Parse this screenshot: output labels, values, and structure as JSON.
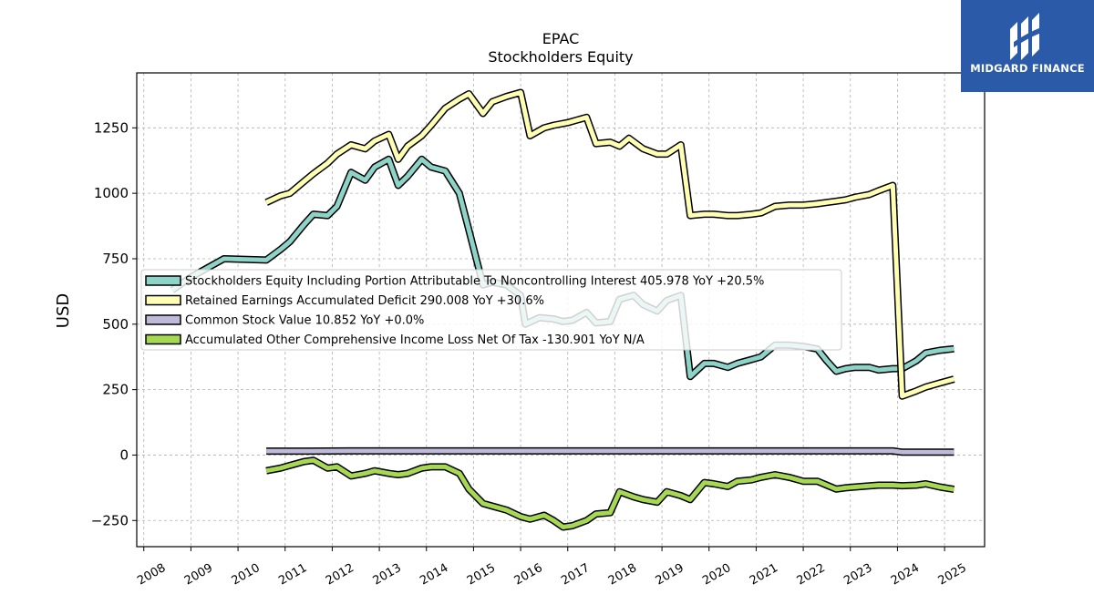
{
  "brand": {
    "name": "MIDGARD FINANCE",
    "logo_icon": "midgard-m-logo",
    "background": "#2b5aa8"
  },
  "chart_data": {
    "type": "line",
    "title": "EPAC",
    "subtitle": "Stockholders  Equity",
    "ylabel": "USD",
    "xlabel": "",
    "ylim": [
      -350,
      1460
    ],
    "xlim": [
      2007.85,
      2025.85
    ],
    "yticks": [
      -250,
      0,
      250,
      500,
      750,
      1000,
      1250
    ],
    "xticks": [
      2008,
      2009,
      2010,
      2011,
      2012,
      2013,
      2014,
      2015,
      2016,
      2017,
      2018,
      2019,
      2020,
      2021,
      2022,
      2023,
      2024,
      2025
    ],
    "grid": true,
    "legend_position": "center-left",
    "series": [
      {
        "name": "Stockholders Equity Including Portion Attributable To Noncontrolling Interest  405.978 YoY +20.5%",
        "color": "#8dd3c7",
        "points": [
          [
            2008.6,
            630
          ],
          [
            2009.0,
            680
          ],
          [
            2009.3,
            710
          ],
          [
            2009.7,
            750
          ],
          [
            2010.6,
            745
          ],
          [
            2010.9,
            785
          ],
          [
            2011.1,
            815
          ],
          [
            2011.4,
            880
          ],
          [
            2011.6,
            920
          ],
          [
            2011.9,
            915
          ],
          [
            2012.1,
            950
          ],
          [
            2012.4,
            1080
          ],
          [
            2012.7,
            1050
          ],
          [
            2012.9,
            1100
          ],
          [
            2013.2,
            1130
          ],
          [
            2013.4,
            1030
          ],
          [
            2013.6,
            1065
          ],
          [
            2013.9,
            1130
          ],
          [
            2014.1,
            1100
          ],
          [
            2014.4,
            1085
          ],
          [
            2014.7,
            1000
          ],
          [
            2014.9,
            860
          ],
          [
            2015.2,
            650
          ],
          [
            2015.4,
            660
          ],
          [
            2015.7,
            650
          ],
          [
            2016.0,
            610
          ],
          [
            2016.1,
            500
          ],
          [
            2016.4,
            525
          ],
          [
            2016.7,
            520
          ],
          [
            2016.9,
            510
          ],
          [
            2017.1,
            515
          ],
          [
            2017.4,
            545
          ],
          [
            2017.6,
            505
          ],
          [
            2017.9,
            510
          ],
          [
            2018.1,
            595
          ],
          [
            2018.4,
            610
          ],
          [
            2018.6,
            575
          ],
          [
            2018.9,
            550
          ],
          [
            2019.1,
            590
          ],
          [
            2019.4,
            610
          ],
          [
            2019.6,
            300
          ],
          [
            2019.9,
            350
          ],
          [
            2020.1,
            350
          ],
          [
            2020.4,
            335
          ],
          [
            2020.6,
            350
          ],
          [
            2020.9,
            365
          ],
          [
            2021.1,
            375
          ],
          [
            2021.4,
            420
          ],
          [
            2021.7,
            420
          ],
          [
            2022.0,
            415
          ],
          [
            2022.3,
            405
          ],
          [
            2022.5,
            360
          ],
          [
            2022.7,
            320
          ],
          [
            2022.9,
            330
          ],
          [
            2023.1,
            335
          ],
          [
            2023.4,
            335
          ],
          [
            2023.6,
            325
          ],
          [
            2023.9,
            330
          ],
          [
            2024.1,
            330
          ],
          [
            2024.4,
            360
          ],
          [
            2024.6,
            390
          ],
          [
            2024.9,
            400
          ],
          [
            2025.2,
            406
          ]
        ]
      },
      {
        "name": "Retained Earnings Accumulated Deficit  290.008 YoY +30.6%",
        "color": "#ffffb3",
        "points": [
          [
            2010.6,
            965
          ],
          [
            2010.9,
            990
          ],
          [
            2011.1,
            1000
          ],
          [
            2011.4,
            1045
          ],
          [
            2011.6,
            1075
          ],
          [
            2011.9,
            1115
          ],
          [
            2012.1,
            1150
          ],
          [
            2012.4,
            1185
          ],
          [
            2012.7,
            1170
          ],
          [
            2012.9,
            1200
          ],
          [
            2013.2,
            1225
          ],
          [
            2013.4,
            1130
          ],
          [
            2013.6,
            1180
          ],
          [
            2013.9,
            1220
          ],
          [
            2014.1,
            1260
          ],
          [
            2014.4,
            1325
          ],
          [
            2014.7,
            1360
          ],
          [
            2014.9,
            1380
          ],
          [
            2015.2,
            1305
          ],
          [
            2015.4,
            1350
          ],
          [
            2015.7,
            1370
          ],
          [
            2016.0,
            1385
          ],
          [
            2016.2,
            1220
          ],
          [
            2016.5,
            1250
          ],
          [
            2016.7,
            1260
          ],
          [
            2017.0,
            1270
          ],
          [
            2017.2,
            1280
          ],
          [
            2017.4,
            1290
          ],
          [
            2017.6,
            1190
          ],
          [
            2017.9,
            1195
          ],
          [
            2018.1,
            1180
          ],
          [
            2018.3,
            1210
          ],
          [
            2018.6,
            1170
          ],
          [
            2018.9,
            1150
          ],
          [
            2019.1,
            1150
          ],
          [
            2019.4,
            1185
          ],
          [
            2019.6,
            915
          ],
          [
            2019.9,
            920
          ],
          [
            2020.1,
            920
          ],
          [
            2020.4,
            915
          ],
          [
            2020.6,
            915
          ],
          [
            2020.9,
            920
          ],
          [
            2021.1,
            925
          ],
          [
            2021.4,
            950
          ],
          [
            2021.7,
            955
          ],
          [
            2022.0,
            955
          ],
          [
            2022.3,
            960
          ],
          [
            2022.5,
            965
          ],
          [
            2022.7,
            970
          ],
          [
            2022.9,
            975
          ],
          [
            2023.1,
            985
          ],
          [
            2023.4,
            995
          ],
          [
            2023.6,
            1010
          ],
          [
            2023.9,
            1030
          ],
          [
            2024.1,
            225
          ],
          [
            2024.4,
            245
          ],
          [
            2024.6,
            260
          ],
          [
            2024.9,
            275
          ],
          [
            2025.2,
            290
          ]
        ]
      },
      {
        "name": "Common Stock Value  10.852 YoY +0.0%",
        "color": "#bebada",
        "points": [
          [
            2010.6,
            15
          ],
          [
            2011.5,
            15
          ],
          [
            2012.5,
            16
          ],
          [
            2013.5,
            16
          ],
          [
            2014.5,
            16
          ],
          [
            2015.5,
            16
          ],
          [
            2016.5,
            16
          ],
          [
            2017.5,
            16
          ],
          [
            2018.5,
            16
          ],
          [
            2019.5,
            16
          ],
          [
            2020.5,
            16
          ],
          [
            2021.5,
            16
          ],
          [
            2022.5,
            16
          ],
          [
            2023.5,
            16
          ],
          [
            2023.9,
            16
          ],
          [
            2024.1,
            11
          ],
          [
            2024.6,
            11
          ],
          [
            2025.2,
            11
          ]
        ]
      },
      {
        "name": "Accumulated Other Comprehensive Income Loss Net Of Tax  -130.901 YoY N/A",
        "color": "#a6d854",
        "points": [
          [
            2010.6,
            -60
          ],
          [
            2010.9,
            -50
          ],
          [
            2011.1,
            -40
          ],
          [
            2011.4,
            -25
          ],
          [
            2011.6,
            -20
          ],
          [
            2011.9,
            -50
          ],
          [
            2012.1,
            -45
          ],
          [
            2012.4,
            -80
          ],
          [
            2012.7,
            -70
          ],
          [
            2012.9,
            -60
          ],
          [
            2013.2,
            -70
          ],
          [
            2013.4,
            -75
          ],
          [
            2013.6,
            -70
          ],
          [
            2013.9,
            -50
          ],
          [
            2014.1,
            -45
          ],
          [
            2014.4,
            -45
          ],
          [
            2014.7,
            -70
          ],
          [
            2014.9,
            -130
          ],
          [
            2015.2,
            -185
          ],
          [
            2015.4,
            -195
          ],
          [
            2015.7,
            -210
          ],
          [
            2016.0,
            -235
          ],
          [
            2016.2,
            -245
          ],
          [
            2016.5,
            -230
          ],
          [
            2016.7,
            -250
          ],
          [
            2016.9,
            -275
          ],
          [
            2017.1,
            -270
          ],
          [
            2017.4,
            -250
          ],
          [
            2017.6,
            -225
          ],
          [
            2017.9,
            -220
          ],
          [
            2018.1,
            -140
          ],
          [
            2018.4,
            -160
          ],
          [
            2018.6,
            -170
          ],
          [
            2018.9,
            -180
          ],
          [
            2019.1,
            -140
          ],
          [
            2019.4,
            -155
          ],
          [
            2019.6,
            -170
          ],
          [
            2019.9,
            -105
          ],
          [
            2020.1,
            -110
          ],
          [
            2020.4,
            -120
          ],
          [
            2020.6,
            -100
          ],
          [
            2020.9,
            -95
          ],
          [
            2021.1,
            -85
          ],
          [
            2021.4,
            -75
          ],
          [
            2021.7,
            -85
          ],
          [
            2022.0,
            -100
          ],
          [
            2022.3,
            -100
          ],
          [
            2022.5,
            -115
          ],
          [
            2022.7,
            -130
          ],
          [
            2022.9,
            -125
          ],
          [
            2023.1,
            -122
          ],
          [
            2023.4,
            -118
          ],
          [
            2023.6,
            -115
          ],
          [
            2023.9,
            -115
          ],
          [
            2024.1,
            -117
          ],
          [
            2024.4,
            -115
          ],
          [
            2024.6,
            -110
          ],
          [
            2024.9,
            -122
          ],
          [
            2025.2,
            -131
          ]
        ]
      }
    ]
  }
}
